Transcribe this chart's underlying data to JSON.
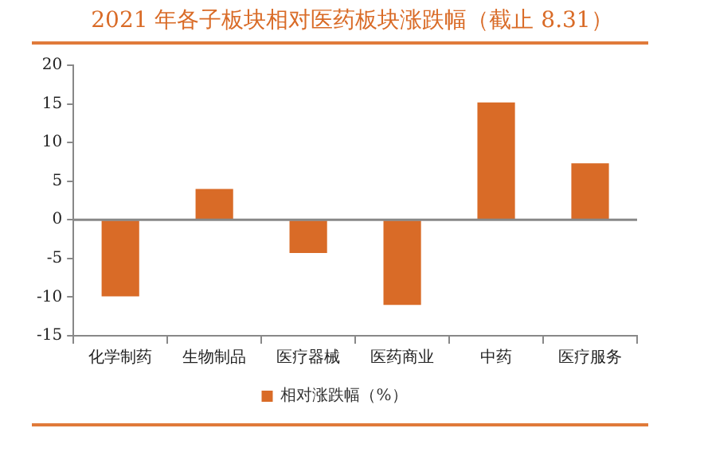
{
  "chart_data": {
    "type": "bar",
    "title": "2021 年各子板块相对医药板块涨跌幅（截止 8.31）",
    "categories": [
      "化学制药",
      "生物制品",
      "医疗器械",
      "医药商业",
      "中药",
      "医疗服务"
    ],
    "series": [
      {
        "name": "相对涨跌幅（%）",
        "color": "#d96b27",
        "values": [
          -9.9,
          4.0,
          -4.3,
          -11.0,
          15.2,
          7.3
        ]
      }
    ],
    "ylim": [
      -15,
      20
    ],
    "yticks": [
      -15,
      -10,
      -5,
      0,
      5,
      10,
      15,
      20
    ],
    "grid": false,
    "ref_lines": [
      {
        "axis": "y",
        "value": 0,
        "color": "#888888"
      }
    ],
    "legend": "bottom"
  }
}
